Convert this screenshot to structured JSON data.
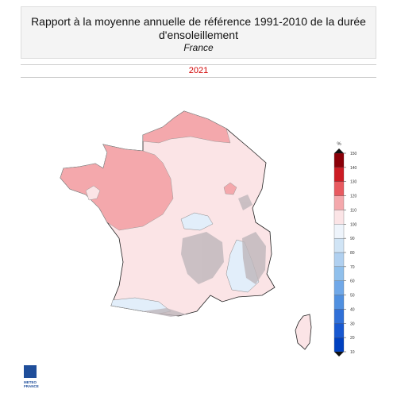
{
  "header": {
    "title": [
      "Rapport à la moyenne annuelle de référence 1991-2010 de la durée",
      "d'ensoleillement"
    ],
    "subtitle": "France"
  },
  "year": "2021",
  "legend": {
    "unit": "%",
    "ticks": [
      10,
      20,
      30,
      40,
      50,
      60,
      70,
      80,
      90,
      100,
      110,
      120,
      130,
      140,
      150
    ],
    "colors": [
      "#0040c0",
      "#1858d0",
      "#3070d8",
      "#5090e0",
      "#70a8e8",
      "#90c0ec",
      "#b0d0f0",
      "#d0e4f5",
      "#eef4fb",
      "#fbe4e6",
      "#f4a8ac",
      "#e85a60",
      "#cc1c24",
      "#8b0008"
    ]
  },
  "logo": [
    "METEO",
    "FRANCE"
  ]
}
